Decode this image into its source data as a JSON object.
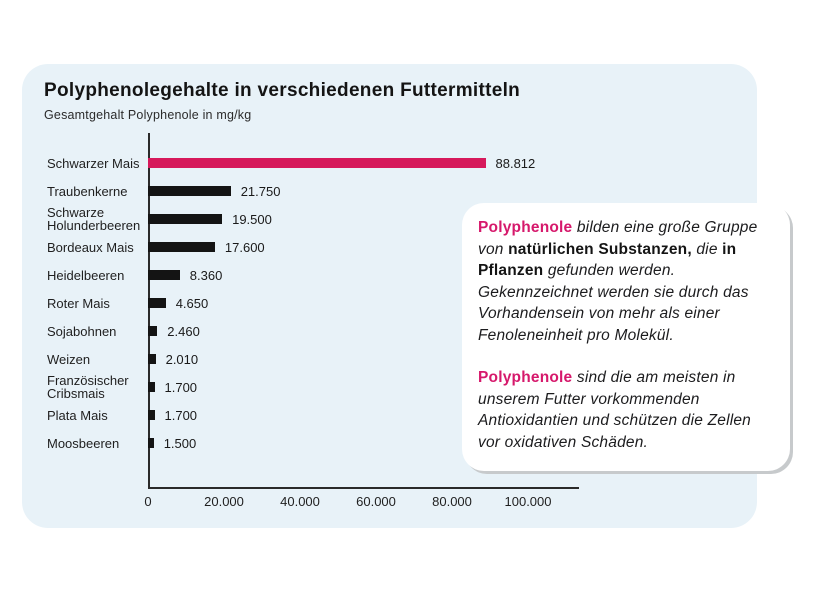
{
  "page": {
    "background": "#ffffff",
    "card_background": "#e8f2f8"
  },
  "chart_data": {
    "type": "bar",
    "orientation": "horizontal",
    "title": "Polyphenolegehalte in verschiedenen Futtermitteln",
    "subtitle": "Gesamtgehalt Polyphenole in mg/kg",
    "categories": [
      "Schwarzer Mais",
      "Traubenkerne",
      "Schwarze\nHolunderbeeren",
      "Bordeaux Mais",
      "Heidelbeeren",
      "Roter Mais",
      "Sojabohnen",
      "Weizen",
      "Französischer\nCribsmais",
      "Plata Mais",
      "Moosbeeren"
    ],
    "values": [
      88812,
      21750,
      19500,
      17600,
      8360,
      4650,
      2460,
      2010,
      1700,
      1700,
      1500
    ],
    "value_labels": [
      "88.812",
      "21.750",
      "19.500",
      "17.600",
      "8.360",
      "4.650",
      "2.460",
      "2.010",
      "1.700",
      "1.700",
      "1.500"
    ],
    "bar_color": "#141414",
    "highlight_color": "#d6195b",
    "highlight_index": 0,
    "xlabel": "",
    "ylabel": "",
    "xlim": [
      0,
      100000
    ],
    "xticks": [
      0,
      20000,
      40000,
      60000,
      80000,
      100000
    ],
    "xtick_labels": [
      "0",
      "20.000",
      "40.000",
      "60.000",
      "80.000",
      "100.000"
    ],
    "grid": false,
    "legend": false
  },
  "infobox": {
    "accent_color": "#d6186b",
    "paragraphs": [
      {
        "segments": [
          {
            "text": "Polyphenole",
            "style": "accent"
          },
          {
            "text": " bilden eine große Gruppe von ",
            "style": "italic"
          },
          {
            "text": "natürlichen Substanzen,",
            "style": "bold"
          },
          {
            "text": " die ",
            "style": "italic"
          },
          {
            "text": "in Pflanzen",
            "style": "bold"
          },
          {
            "text": " gefunden werden. Gekennzeichnet werden sie durch das Vorhandensein von mehr als einer Fenoleneinheit pro Molekül.",
            "style": "italic"
          }
        ]
      },
      {
        "segments": [
          {
            "text": "Polyphenole",
            "style": "accent"
          },
          {
            "text": " sind die am meisten in unserem Futter vorkommenden Antioxidantien und schützen die Zellen vor oxidativen Schäden.",
            "style": "italic"
          }
        ]
      }
    ]
  }
}
